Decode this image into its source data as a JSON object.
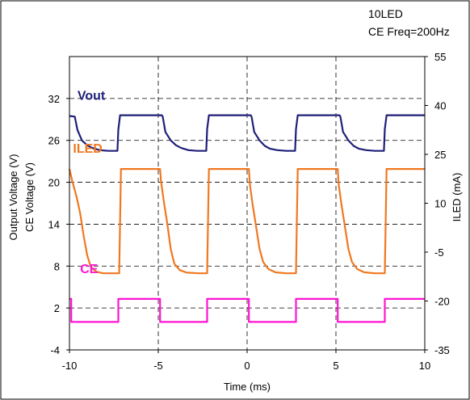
{
  "chart_data": {
    "type": "line",
    "annotation": [
      "10LED",
      "CE Freq=200Hz"
    ],
    "xlabel": "Time (ms)",
    "ylabel_left": [
      "Output Voltage (V)",
      "CE Voltage (V)"
    ],
    "ylabel_right": "ILED (mA)",
    "xlim": [
      -10,
      10
    ],
    "xticks": [
      -10,
      -5,
      0,
      5,
      10
    ],
    "ylim_left": [
      -4,
      38
    ],
    "yticks_left": [
      -4,
      2,
      8,
      14,
      20,
      26,
      32
    ],
    "ylim_right": [
      -35,
      55
    ],
    "yticks_right": [
      -35,
      -20,
      -5,
      10,
      25,
      40,
      55
    ],
    "grid": true,
    "series": [
      {
        "name": "Vout",
        "axis": "left",
        "color": "#1f1f7a",
        "x": [
          -10.0,
          -9.7,
          -9.55,
          -9.3,
          -9.0,
          -8.7,
          -8.3,
          -7.8,
          -7.3,
          -7.25,
          -7.15,
          -4.8,
          -4.75,
          -4.6,
          -4.3,
          -4.0,
          -3.7,
          -3.3,
          -2.8,
          -2.3,
          -2.25,
          -2.15,
          0.2,
          0.25,
          0.4,
          0.7,
          1.0,
          1.3,
          1.7,
          2.2,
          2.7,
          2.75,
          2.85,
          5.2,
          5.25,
          5.4,
          5.7,
          6.0,
          6.3,
          6.7,
          7.2,
          7.7,
          7.75,
          7.85,
          10.0
        ],
        "y": [
          29.5,
          29.4,
          27.5,
          26.0,
          25.3,
          24.9,
          24.6,
          24.5,
          24.5,
          27.5,
          29.6,
          29.6,
          29.4,
          27.2,
          26.0,
          25.3,
          24.9,
          24.6,
          24.5,
          24.5,
          27.6,
          29.6,
          29.6,
          29.4,
          27.2,
          26.0,
          25.2,
          24.8,
          24.6,
          24.5,
          24.5,
          27.6,
          29.6,
          29.6,
          29.4,
          27.2,
          26.0,
          25.2,
          24.8,
          24.6,
          24.5,
          24.5,
          27.6,
          29.6,
          29.6
        ],
        "label": "Vout"
      },
      {
        "name": "ILED",
        "axis": "right",
        "color": "#f07820",
        "x": [
          -10.0,
          -9.85,
          -9.6,
          -9.4,
          -9.2,
          -9.0,
          -8.8,
          -8.5,
          -8.1,
          -7.5,
          -7.2,
          -7.1,
          -4.9,
          -4.85,
          -4.7,
          -4.5,
          -4.3,
          -4.1,
          -3.8,
          -3.4,
          -2.7,
          -2.25,
          -2.15,
          0.1,
          0.15,
          0.3,
          0.5,
          0.7,
          0.9,
          1.2,
          1.6,
          2.2,
          2.75,
          2.85,
          5.1,
          5.15,
          5.3,
          5.5,
          5.7,
          5.9,
          6.2,
          6.6,
          7.2,
          7.75,
          7.85,
          10.0
        ],
        "y": [
          20.5,
          17.0,
          12.0,
          7.0,
          0.0,
          -6.0,
          -9.5,
          -11.0,
          -11.5,
          -11.5,
          -11.5,
          20.5,
          20.5,
          17.0,
          11.0,
          4.0,
          -4.0,
          -8.5,
          -10.5,
          -11.3,
          -11.5,
          -11.5,
          20.5,
          20.5,
          16.0,
          10.0,
          3.0,
          -4.0,
          -8.0,
          -10.2,
          -11.2,
          -11.5,
          -11.5,
          20.5,
          20.5,
          16.0,
          10.0,
          3.0,
          -4.0,
          -8.0,
          -10.2,
          -11.2,
          -11.5,
          -11.5,
          20.5,
          20.5
        ],
        "label": "ILED"
      },
      {
        "name": "CE",
        "axis": "left",
        "color": "#ff14d2",
        "x": [
          -10.0,
          -9.9,
          -9.9,
          -7.25,
          -7.25,
          -4.9,
          -4.9,
          -2.25,
          -2.25,
          0.1,
          0.1,
          2.75,
          2.75,
          5.1,
          5.1,
          7.75,
          7.75,
          10.0
        ],
        "y": [
          3.3,
          3.3,
          0.0,
          0.0,
          3.3,
          3.3,
          0.0,
          0.0,
          3.3,
          3.3,
          0.0,
          0.0,
          3.3,
          3.3,
          0.0,
          0.0,
          3.3,
          3.3
        ],
        "label": "CE"
      }
    ]
  }
}
